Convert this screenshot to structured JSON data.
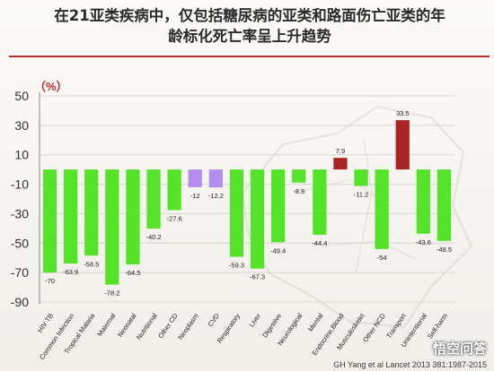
{
  "title_lines": [
    "在21亚类疾病中，仅包括糖尿病的亚类和路面伤亡亚类的年",
    "龄标化死亡率呈上升趋势"
  ],
  "unit_label": "（%）",
  "source": "GH Yang et al Lancet 2013 381:1987-2015",
  "watermark": "悟空问答",
  "colors": {
    "decrease": "#55e32a",
    "neutral": "#b38cf0",
    "increase": "#a82425",
    "title_rule": "#b22f2f"
  },
  "chart_data": {
    "type": "bar",
    "title": "",
    "xlabel": "",
    "ylabel": "（%）",
    "ylim": [
      -90,
      50
    ],
    "yticks": [
      -90,
      -70,
      -50,
      -30,
      -10,
      10,
      30,
      50
    ],
    "grid": true,
    "categories": [
      "HIV TB",
      "Common Infection",
      "Tropical Malaria",
      "Maternal",
      "Neonatal",
      "Nutritional",
      "Other CD",
      "Neoplasm",
      "CVD",
      "Respiratory",
      "Liver",
      "Digestive",
      "Neurological",
      "Mental",
      "Endocrine,Blood",
      "Musculoskelet",
      "Other NCD",
      "Transport",
      "Unintentional",
      "Self-harm"
    ],
    "values": [
      -70,
      -63.9,
      -58.5,
      -78.2,
      -64.5,
      -40.2,
      -27.6,
      -12,
      -12.2,
      -59.3,
      -67.3,
      -49.4,
      -8.9,
      -44.4,
      7.9,
      -11.2,
      -54,
      33.5,
      -43.6,
      -48.5
    ],
    "value_labels": [
      "-70",
      "-63.9",
      "-58.5",
      "-78.2",
      "-64.5",
      "-40.2",
      "-27.6",
      "-12",
      "-12.2",
      "-59.3",
      "-67.3",
      "-49.4",
      "-8.9",
      "-44.4",
      "7.9",
      "-11.2",
      "-54",
      "33.5",
      "-43.6",
      "-48.5"
    ],
    "bar_colors": [
      "decrease",
      "decrease",
      "decrease",
      "decrease",
      "decrease",
      "decrease",
      "decrease",
      "neutral",
      "neutral",
      "decrease",
      "decrease",
      "decrease",
      "decrease",
      "decrease",
      "increase",
      "decrease",
      "decrease",
      "increase",
      "decrease",
      "decrease"
    ]
  }
}
